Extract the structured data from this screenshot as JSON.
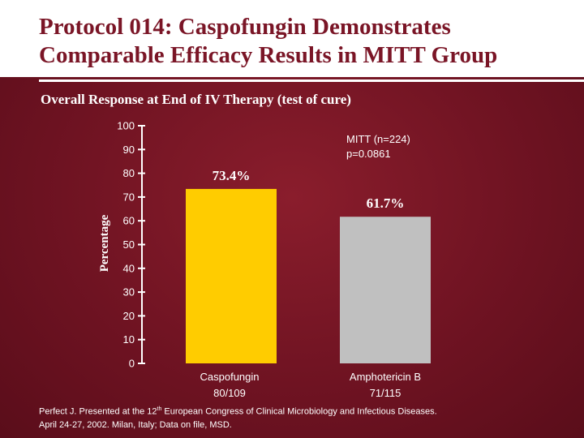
{
  "slide": {
    "title_line1": "Protocol 014: Caspofungin Demonstrates",
    "title_line2": "Comparable Efficacy Results in MITT Group",
    "subtitle": "Overall Response at End of IV Therapy (test of cure)",
    "footnote_pre": "Perfect J. Presented at the 12",
    "footnote_sup": "th",
    "footnote_post": " European Congress of Clinical Microbiology and Infectious Diseases.",
    "footnote_line2": "April 24-27, 2002. Milan, Italy; Data on file, MSD."
  },
  "chart_data": {
    "type": "bar",
    "title": "Overall Response at End of IV Therapy (test of cure)",
    "xlabel": "",
    "ylabel": "Percentage",
    "ylim": [
      0,
      100
    ],
    "yticks": [
      0,
      10,
      20,
      30,
      40,
      50,
      60,
      70,
      80,
      90,
      100
    ],
    "categories": [
      "Caspofungin",
      "Amphotericin B"
    ],
    "category_counts": [
      "80/109",
      "71/115"
    ],
    "values": [
      73.4,
      61.7
    ],
    "data_labels": [
      "73.4%",
      "61.7%"
    ],
    "bar_colors": [
      "#ffcc00",
      "#c0c0c0"
    ],
    "annotation_line1": "MITT (n=224)",
    "annotation_line2": "p=0.0861"
  }
}
